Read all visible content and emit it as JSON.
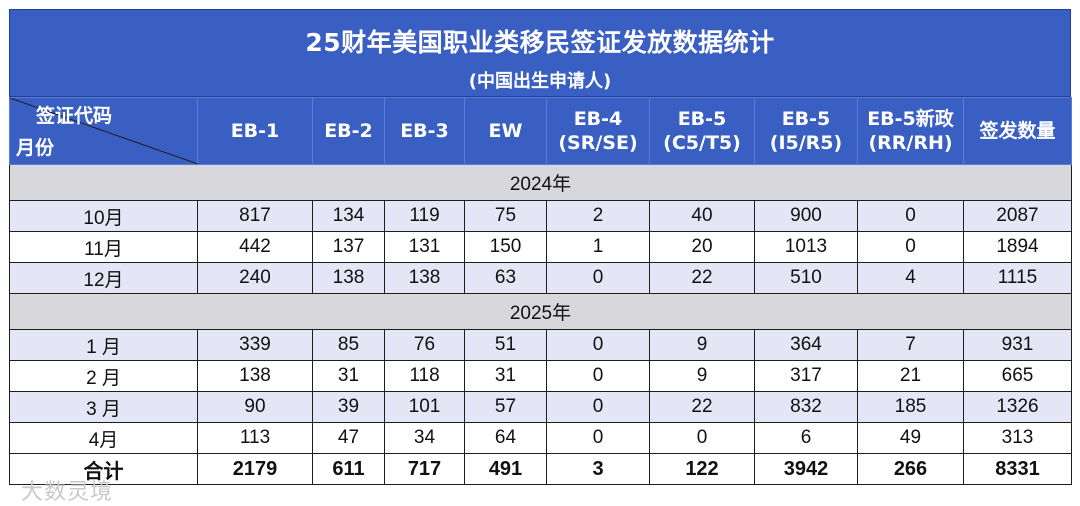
{
  "title": "25财年美国职业类移民签证发放数据统计",
  "subtitle": "(中国出生申请人)",
  "corner": {
    "top_label": "签证代码",
    "bottom_label": "月份"
  },
  "headers": [
    [
      "EB-1"
    ],
    [
      "EB-2"
    ],
    [
      "EB-3"
    ],
    [
      "EW"
    ],
    [
      "EB-4",
      "(SR/SE)"
    ],
    [
      "EB-5",
      "(C5/T5)"
    ],
    [
      "EB-5",
      "(I5/R5)"
    ],
    [
      "EB-5新政",
      "(RR/RH)"
    ],
    [
      "签发数量"
    ]
  ],
  "sections": [
    {
      "year": "2024年",
      "rows": [
        {
          "month": "10月",
          "values": [
            "817",
            "134",
            "119",
            "75",
            "2",
            "40",
            "900",
            "0",
            "2087"
          ]
        },
        {
          "month": "11月",
          "values": [
            "442",
            "137",
            "131",
            "150",
            "1",
            "20",
            "1013",
            "0",
            "1894"
          ]
        },
        {
          "month": "12月",
          "values": [
            "240",
            "138",
            "138",
            "63",
            "0",
            "22",
            "510",
            "4",
            "1115"
          ]
        }
      ]
    },
    {
      "year": "2025年",
      "rows": [
        {
          "month": "1 月",
          "values": [
            "339",
            "85",
            "76",
            "51",
            "0",
            "9",
            "364",
            "7",
            "931"
          ]
        },
        {
          "month": "2 月",
          "values": [
            "138",
            "31",
            "118",
            "31",
            "0",
            "9",
            "317",
            "21",
            "665"
          ]
        },
        {
          "month": "3 月",
          "values": [
            "90",
            "39",
            "101",
            "57",
            "0",
            "22",
            "832",
            "185",
            "1326"
          ]
        },
        {
          "month": "4月",
          "values": [
            "113",
            "47",
            "34",
            "64",
            "0",
            "0",
            "6",
            "49",
            "313"
          ]
        }
      ]
    }
  ],
  "total": {
    "label": "合计",
    "values": [
      "2179",
      "611",
      "717",
      "491",
      "3",
      "122",
      "3942",
      "266",
      "8331"
    ]
  },
  "watermark": "大数灵境",
  "colors": {
    "header_blue": "#3a5fc2",
    "row_stripe": "#e4e6f5",
    "year_row": "#d8d8dc"
  }
}
